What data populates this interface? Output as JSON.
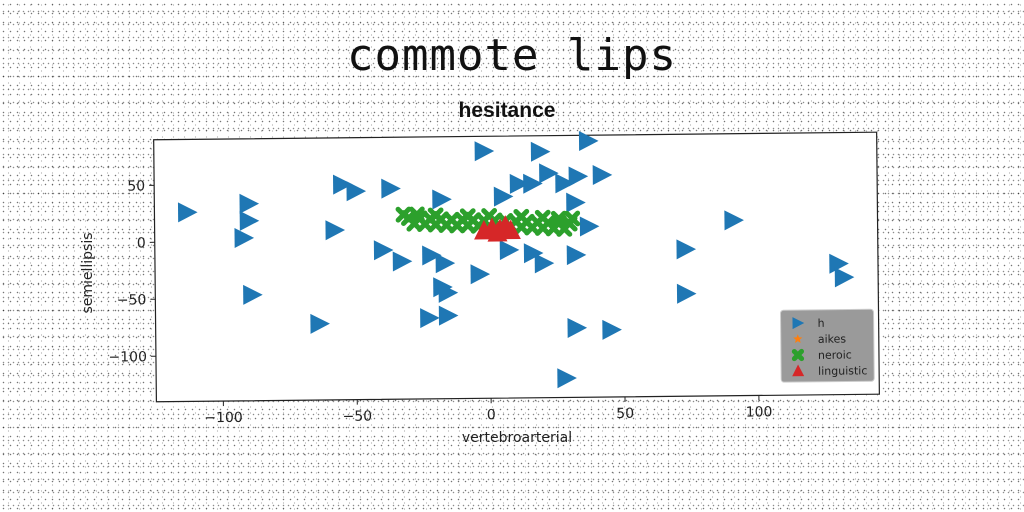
{
  "figure": {
    "suptitle": "commote lips"
  },
  "chart_data": {
    "type": "scatter",
    "title": "hesitance",
    "xlabel": "vertebroarterial",
    "ylabel": "semiellipsis",
    "xlim": [
      -125,
      145
    ],
    "ylim": [
      -140,
      90
    ],
    "xticks": [
      -100,
      -50,
      0,
      50,
      100
    ],
    "xtick_labels": [
      "−100",
      "−50",
      "0",
      "50",
      "100"
    ],
    "yticks": [
      -100,
      -50,
      0,
      50
    ],
    "ytick_labels": [
      "−100",
      "−50",
      "0",
      "50"
    ],
    "grid": false,
    "legend_position": "lower-right",
    "series": [
      {
        "name": "h",
        "marker": "triangle-right",
        "color": "#1f77b4",
        "points": [
          [
            -2,
            77
          ],
          [
            19,
            76
          ],
          [
            37,
            85
          ],
          [
            -113,
            26
          ],
          [
            -90,
            33
          ],
          [
            -90,
            18
          ],
          [
            -92,
            3
          ],
          [
            -55,
            49
          ],
          [
            -50,
            43
          ],
          [
            -37,
            45
          ],
          [
            -58,
            9
          ],
          [
            -18,
            35
          ],
          [
            5,
            37
          ],
          [
            11,
            48
          ],
          [
            16,
            48
          ],
          [
            22,
            57
          ],
          [
            28,
            48
          ],
          [
            33,
            54
          ],
          [
            42,
            55
          ],
          [
            32,
            31
          ],
          [
            37,
            10
          ],
          [
            91,
            14
          ],
          [
            -40,
            -9
          ],
          [
            -33,
            -19
          ],
          [
            -22,
            -14
          ],
          [
            -17,
            -21
          ],
          [
            -4,
            -31
          ],
          [
            7,
            -10
          ],
          [
            16,
            -13
          ],
          [
            20,
            -22
          ],
          [
            32,
            -15
          ],
          [
            73,
            -11
          ],
          [
            -89,
            -47
          ],
          [
            -64,
            -73
          ],
          [
            -23,
            -69
          ],
          [
            -18,
            -42
          ],
          [
            -16,
            -47
          ],
          [
            -16,
            -67
          ],
          [
            73,
            -50
          ],
          [
            32,
            -79
          ],
          [
            45,
            -81
          ],
          [
            28,
            -123
          ],
          [
            130,
            -25
          ],
          [
            132,
            -37
          ]
        ]
      },
      {
        "name": "aikes",
        "marker": "star",
        "color": "#ff7f0e",
        "points": [
          [
            -1,
            8
          ],
          [
            2,
            6
          ],
          [
            5,
            9
          ]
        ]
      },
      {
        "name": "neroic",
        "marker": "x",
        "color": "#2ca02c",
        "points": [
          [
            -30,
            19
          ],
          [
            -26,
            18.5
          ],
          [
            -22,
            18
          ],
          [
            -18,
            17.5
          ],
          [
            -14,
            17
          ],
          [
            -10,
            17
          ],
          [
            -6,
            16.5
          ],
          [
            -2,
            16
          ],
          [
            2,
            16
          ],
          [
            6,
            15.5
          ],
          [
            10,
            15
          ],
          [
            14,
            14.5
          ],
          [
            18,
            14
          ],
          [
            22,
            13.5
          ],
          [
            26,
            13
          ],
          [
            30,
            12.5
          ],
          [
            -28,
            14
          ],
          [
            -24,
            13.5
          ],
          [
            -20,
            13
          ],
          [
            -16,
            12.5
          ],
          [
            -12,
            12
          ],
          [
            -8,
            12
          ],
          [
            -4,
            11.5
          ],
          [
            0,
            11
          ],
          [
            4,
            11
          ],
          [
            8,
            10.5
          ],
          [
            12,
            10
          ],
          [
            16,
            9.5
          ],
          [
            20,
            9
          ],
          [
            24,
            8.5
          ],
          [
            28,
            8
          ],
          [
            -32,
            22
          ],
          [
            31,
            17
          ],
          [
            -27,
            22
          ],
          [
            -8,
            20
          ],
          [
            12,
            19
          ],
          [
            26,
            17
          ],
          [
            -20,
            21
          ],
          [
            0,
            20
          ],
          [
            20,
            18
          ]
        ]
      },
      {
        "name": "linguistic",
        "marker": "triangle-up",
        "color": "#d62728",
        "points": [
          [
            -2,
            7
          ],
          [
            1,
            9
          ],
          [
            4,
            8
          ],
          [
            6,
            11
          ],
          [
            8,
            7
          ],
          [
            3,
            5
          ]
        ]
      }
    ]
  }
}
